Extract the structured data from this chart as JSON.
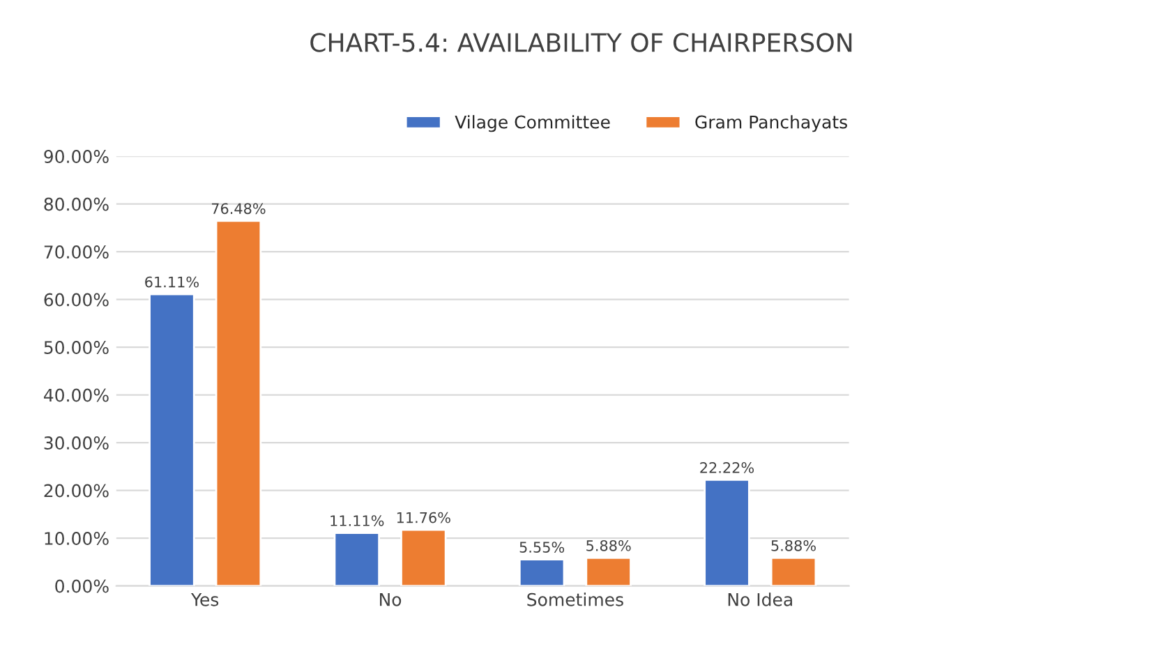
{
  "chart_data": {
    "type": "bar",
    "title": "CHART-5.4: AVAILABILITY OF CHAIRPERSON",
    "categories": [
      "Yes",
      "No",
      "Sometimes",
      "No Idea"
    ],
    "series": [
      {
        "name": "Vilage Committee",
        "color": "#4472c4",
        "values": [
          61.11,
          11.11,
          5.55,
          22.22
        ],
        "value_labels": [
          "61.11%",
          "11.11%",
          "5.55%",
          "22.22%"
        ]
      },
      {
        "name": "Gram Panchayats",
        "color": "#ed7d31",
        "values": [
          76.48,
          11.76,
          5.88,
          5.88
        ],
        "value_labels": [
          "76.48%",
          "11.76%",
          "5.88%",
          "5.88%"
        ]
      }
    ],
    "ylim": [
      0,
      90
    ],
    "yticks": [
      {
        "value": 0,
        "label": "0.00%"
      },
      {
        "value": 10,
        "label": "10.00%"
      },
      {
        "value": 20,
        "label": "20.00%"
      },
      {
        "value": 30,
        "label": "30.00%"
      },
      {
        "value": 40,
        "label": "40.00%"
      },
      {
        "value": 50,
        "label": "50.00%"
      },
      {
        "value": 60,
        "label": "60.00%"
      },
      {
        "value": 70,
        "label": "70.00%"
      },
      {
        "value": 80,
        "label": "80.00%"
      },
      {
        "value": 90,
        "label": "90.00%"
      }
    ],
    "grid": "y",
    "legend": "top right"
  }
}
